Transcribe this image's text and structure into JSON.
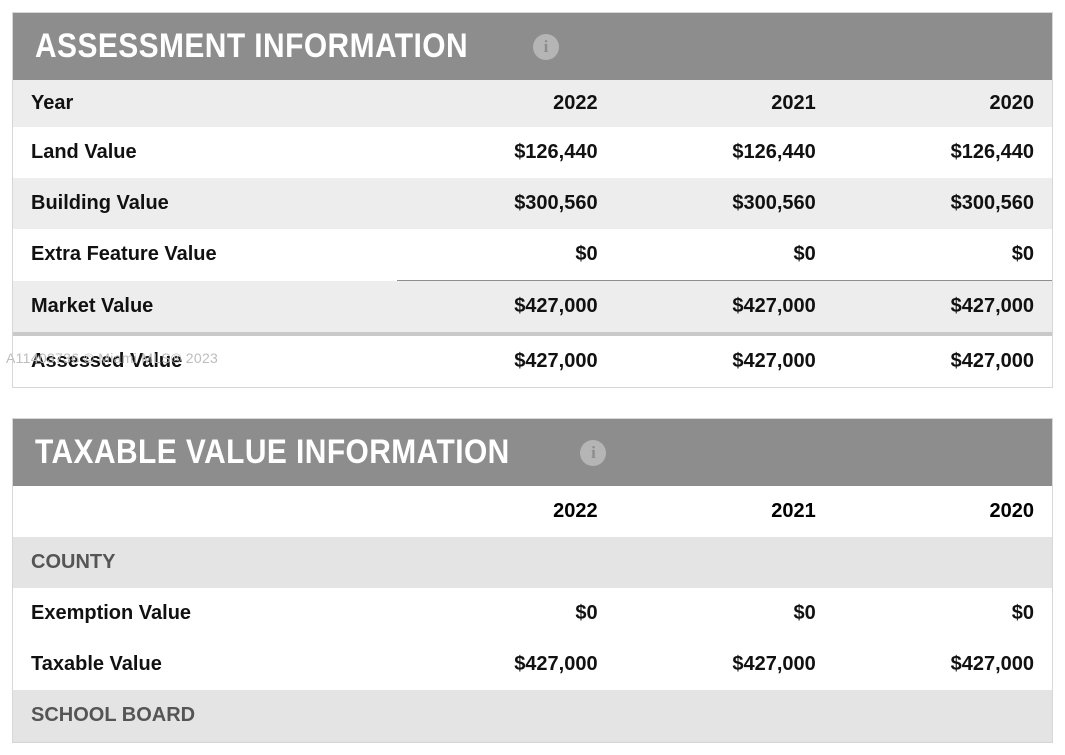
{
  "watermark": "A11403736 © Miami MLS® 2023",
  "assessment": {
    "title": "ASSESSMENT INFORMATION",
    "header_bg": "#8d8d8d",
    "years": [
      "2022",
      "2021",
      "2020"
    ],
    "rows": [
      {
        "label": "Year",
        "values": [
          "2022",
          "2021",
          "2020"
        ],
        "type": "head"
      },
      {
        "label": "Land Value",
        "values": [
          "$126,440",
          "$126,440",
          "$126,440"
        ]
      },
      {
        "label": "Building Value",
        "values": [
          "$300,560",
          "$300,560",
          "$300,560"
        ]
      },
      {
        "label": "Extra Feature Value",
        "values": [
          "$0",
          "$0",
          "$0"
        ],
        "underline": true
      },
      {
        "label": "Market Value",
        "values": [
          "$427,000",
          "$427,000",
          "$427,000"
        ]
      },
      {
        "label": "Assessed Value",
        "values": [
          "$427,000",
          "$427,000",
          "$427,000"
        ],
        "topgrey": true
      }
    ]
  },
  "taxable": {
    "title": "TAXABLE VALUE INFORMATION",
    "years": [
      "2022",
      "2021",
      "2020"
    ],
    "sections": [
      {
        "heading": "COUNTY",
        "rows": [
          {
            "label": "Exemption Value",
            "values": [
              "$0",
              "$0",
              "$0"
            ]
          },
          {
            "label": "Taxable Value",
            "values": [
              "$427,000",
              "$427,000",
              "$427,000"
            ]
          }
        ]
      },
      {
        "heading": "SCHOOL BOARD",
        "rows": []
      }
    ]
  },
  "colors": {
    "header_bg": "#8d8d8d",
    "header_text": "#ffffff",
    "badge_bg": "#b5b5b5",
    "row_alt_bg": "#ededed",
    "section_bg": "#e4e4e4",
    "text": "#111111",
    "section_text": "#555555",
    "watermark": "#bdbdbd"
  }
}
